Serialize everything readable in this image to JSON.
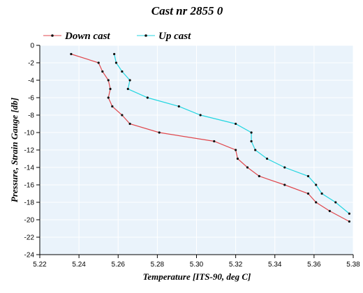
{
  "chart_data": {
    "type": "line",
    "title": "Cast nr 2855 0",
    "xlabel": "Temperature [ITS-90, deg C]",
    "ylabel": "Pressure, Strain Gauge [db]",
    "xlim": [
      5.22,
      5.38
    ],
    "ylim": [
      -24,
      0
    ],
    "xticks": [
      "5.22",
      "5.24",
      "5.26",
      "5.28",
      "5.30",
      "5.32",
      "5.34",
      "5.36",
      "5.38"
    ],
    "yticks": [
      "0",
      "-2",
      "-4",
      "-6",
      "-8",
      "-10",
      "-12",
      "-14",
      "-16",
      "-18",
      "-20",
      "-22",
      "-24"
    ],
    "grid": true,
    "legend_position": "top-left",
    "plot_background": "#eaf3fb",
    "series": [
      {
        "name": "Down cast",
        "color": "#e0474c",
        "x": [
          5.236,
          5.25,
          5.252,
          5.255,
          5.256,
          5.255,
          5.257,
          5.262,
          5.266,
          5.281,
          5.309,
          5.32,
          5.321,
          5.326,
          5.332,
          5.345,
          5.357,
          5.361,
          5.368,
          5.378
        ],
        "y": [
          -1,
          -2,
          -3,
          -4,
          -5,
          -6,
          -7,
          -8,
          -9,
          -10,
          -11,
          -12,
          -13,
          -14,
          -15,
          -16,
          -17,
          -18,
          -19,
          -20.2
        ]
      },
      {
        "name": "Up cast",
        "color": "#22d6e0",
        "x": [
          5.258,
          5.259,
          5.262,
          5.266,
          5.265,
          5.275,
          5.291,
          5.302,
          5.32,
          5.328,
          5.328,
          5.33,
          5.336,
          5.345,
          5.357,
          5.361,
          5.364,
          5.371,
          5.378
        ],
        "y": [
          -1,
          -2,
          -3,
          -4,
          -5,
          -6,
          -7,
          -8,
          -9,
          -10,
          -11,
          -12,
          -13,
          -14,
          -15,
          -16,
          -17,
          -18,
          -19.3
        ]
      }
    ]
  }
}
